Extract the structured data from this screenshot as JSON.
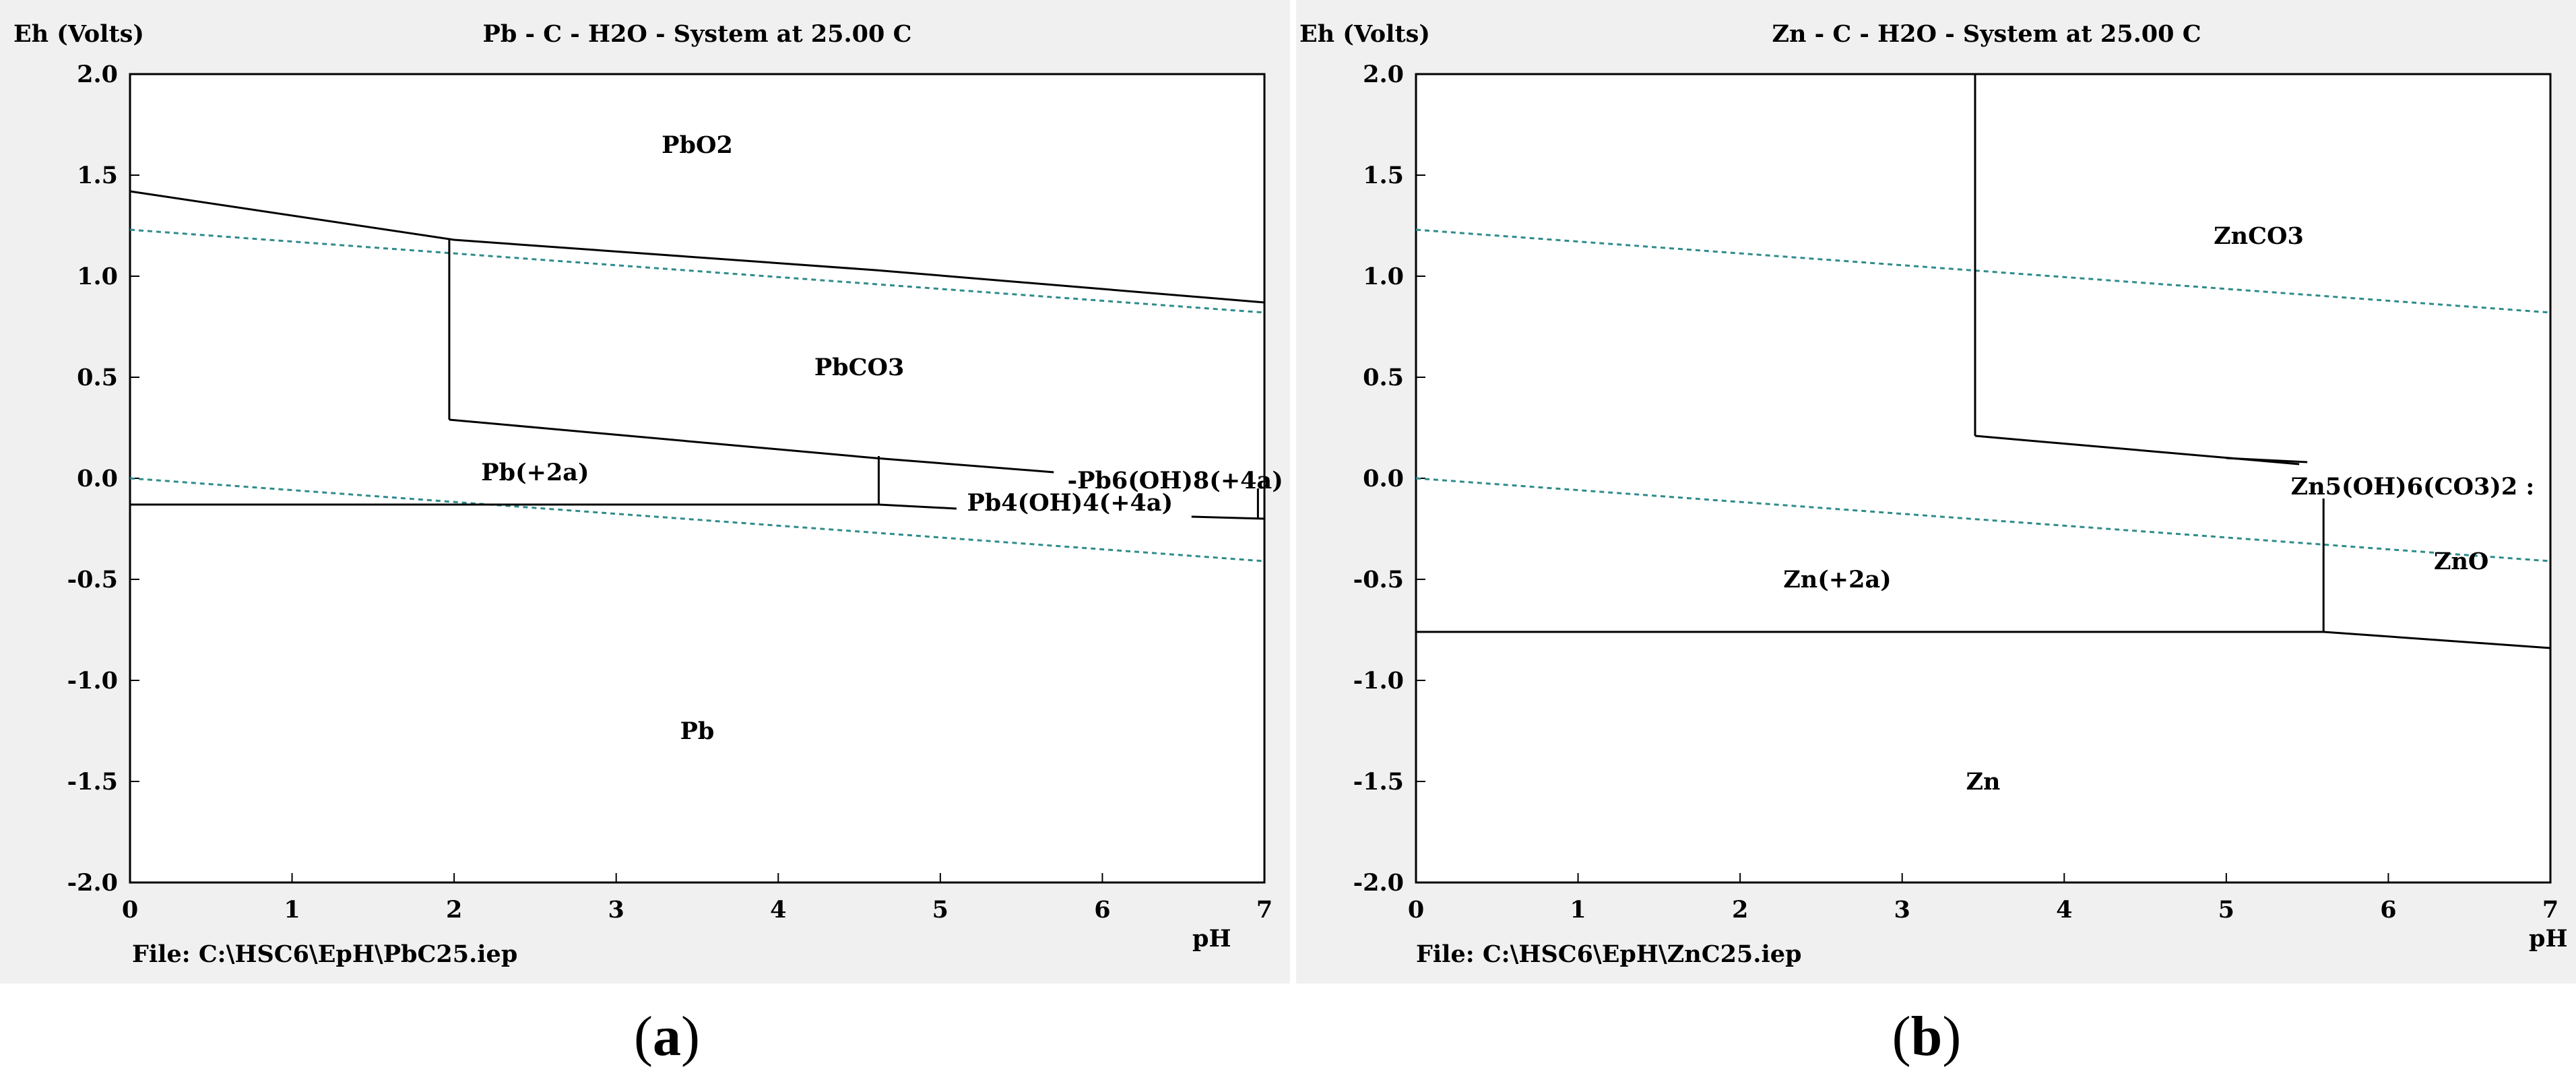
{
  "chart_data": [
    {
      "type": "line",
      "panel_label": "a",
      "title": "Pb - C - H2O - System at 25.00 C",
      "ylabel": "Eh (Volts)",
      "xlabel": "pH",
      "xlim": [
        0,
        7
      ],
      "ylim": [
        -2.0,
        2.0
      ],
      "x_ticks": [
        "0",
        "1",
        "2",
        "3",
        "4",
        "5",
        "6",
        "7"
      ],
      "y_ticks": [
        "2.0",
        "1.5",
        "1.0",
        "0.5",
        "0.0",
        "-0.5",
        "-1.0",
        "-1.5",
        "-2.0"
      ],
      "file_label": "File: C:\\HSC6\\EpH\\PbC25.iep",
      "colors": {
        "boundary": "#000000",
        "water": "#2e8b8b",
        "plot_bg": "#ffffff",
        "frame_bg": "#f0f0f0"
      },
      "water_lines": [
        {
          "name": "O2 stability",
          "points": [
            [
              0,
              1.23
            ],
            [
              7,
              0.82
            ]
          ]
        },
        {
          "name": "H2 stability",
          "points": [
            [
              0,
              0.0
            ],
            [
              7,
              -0.41
            ]
          ]
        }
      ],
      "boundaries": [
        {
          "points": [
            [
              0,
              1.42
            ],
            [
              2.0,
              1.18
            ],
            [
              4.6,
              1.03
            ],
            [
              7,
              0.87
            ]
          ]
        },
        {
          "points": [
            [
              1.97,
              1.18
            ],
            [
              1.97,
              0.29
            ]
          ]
        },
        {
          "points": [
            [
              1.97,
              0.29
            ],
            [
              4.6,
              0.1
            ],
            [
              5.7,
              0.03
            ]
          ]
        },
        {
          "points": [
            [
              4.62,
              0.11
            ],
            [
              4.62,
              -0.13
            ]
          ]
        },
        {
          "points": [
            [
              0,
              -0.13
            ],
            [
              4.62,
              -0.13
            ],
            [
              5.1,
              -0.15
            ]
          ]
        },
        {
          "points": [
            [
              6.55,
              -0.19
            ],
            [
              7,
              -0.2
            ]
          ]
        },
        {
          "points": [
            [
              6.96,
              -0.05
            ],
            [
              6.96,
              -0.2
            ]
          ]
        }
      ],
      "region_labels": [
        {
          "text": "PbO2",
          "x": 3.5,
          "y": 1.65
        },
        {
          "text": "PbCO3",
          "x": 4.5,
          "y": 0.55
        },
        {
          "text": "Pb(+2a)",
          "x": 2.5,
          "y": 0.03
        },
        {
          "text": "-Pb6(OH)8(+4a)",
          "x": 6.45,
          "y": -0.01
        },
        {
          "text": "Pb4(OH)4(+4a)",
          "x": 5.8,
          "y": -0.12
        },
        {
          "text": "Pb",
          "x": 3.5,
          "y": -1.25
        }
      ]
    },
    {
      "type": "line",
      "panel_label": "b",
      "title": "Zn - C - H2O - System at 25.00 C",
      "ylabel": "Eh (Volts)",
      "xlabel": "pH",
      "xlim": [
        0,
        7
      ],
      "ylim": [
        -2.0,
        2.0
      ],
      "x_ticks": [
        "0",
        "1",
        "2",
        "3",
        "4",
        "5",
        "6",
        "7"
      ],
      "y_ticks": [
        "2.0",
        "1.5",
        "1.0",
        "0.5",
        "0.0",
        "-0.5",
        "-1.0",
        "-1.5",
        "-2.0"
      ],
      "file_label": "File: C:\\HSC6\\EpH\\ZnC25.iep",
      "colors": {
        "boundary": "#000000",
        "water": "#2e8b8b",
        "plot_bg": "#ffffff",
        "frame_bg": "#f0f0f0"
      },
      "water_lines": [
        {
          "name": "O2 stability",
          "points": [
            [
              0,
              1.23
            ],
            [
              7,
              0.82
            ]
          ]
        },
        {
          "name": "H2 stability",
          "points": [
            [
              0,
              0.0
            ],
            [
              7,
              -0.41
            ]
          ]
        }
      ],
      "boundaries": [
        {
          "points": [
            [
              3.45,
              2.0
            ],
            [
              3.45,
              0.21
            ]
          ]
        },
        {
          "points": [
            [
              3.45,
              0.21
            ],
            [
              5.45,
              0.07
            ]
          ]
        },
        {
          "points": [
            [
              5.0,
              0.1
            ],
            [
              5.5,
              0.08
            ]
          ]
        },
        {
          "points": [
            [
              5.6,
              -0.1
            ],
            [
              5.6,
              -0.76
            ]
          ]
        },
        {
          "points": [
            [
              0,
              -0.76
            ],
            [
              5.6,
              -0.76
            ],
            [
              7,
              -0.84
            ]
          ]
        }
      ],
      "region_labels": [
        {
          "text": "ZnCO3",
          "x": 5.2,
          "y": 1.2
        },
        {
          "text": "Zn5(OH)6(CO3)2 :",
          "x": 6.15,
          "y": -0.04
        },
        {
          "text": "ZnO",
          "x": 6.45,
          "y": -0.41
        },
        {
          "text": "Zn(+2a)",
          "x": 2.6,
          "y": -0.5
        },
        {
          "text": "Zn",
          "x": 3.5,
          "y": -1.5
        }
      ]
    }
  ],
  "captions": {
    "a": "a",
    "b": "b"
  }
}
